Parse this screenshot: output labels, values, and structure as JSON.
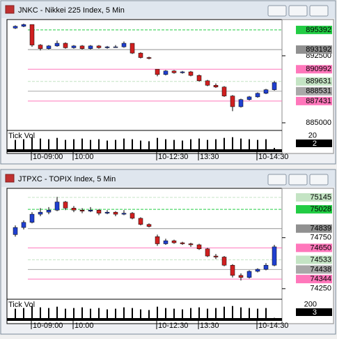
{
  "chart_data": [
    {
      "type": "candlestick",
      "title": "JNKC - Nikkei 225 Index, 5 Min",
      "volume_label": "Tick Vol",
      "up_color": "#2040d0",
      "down_color": "#d02020",
      "ylim": [
        884300,
        896400
      ],
      "yticks": [
        892500,
        885000
      ],
      "levels": [
        {
          "value": 895392,
          "color": "#22cc44"
        },
        {
          "value": 893192,
          "color": "#909090"
        },
        {
          "value": 890992,
          "color": "#ff77bb"
        },
        {
          "value": 889631,
          "color": "#c4e4c4"
        },
        {
          "value": 888531,
          "color": "#a8a8a8"
        },
        {
          "value": 887431,
          "color": "#ff77bb"
        }
      ],
      "xticks": [
        {
          "value": 4,
          "label": "10-09:00"
        },
        {
          "value": 9,
          "label": "10:00"
        },
        {
          "value": 19,
          "label": "10-12:30"
        },
        {
          "value": 24,
          "label": "13:30"
        },
        {
          "value": 31,
          "label": "10-14:30"
        }
      ],
      "candles": [
        [
          895600,
          895900,
          895500,
          895800
        ],
        [
          895800,
          896100,
          895700,
          896000
        ],
        [
          896000,
          896000,
          893500,
          893700
        ],
        [
          893700,
          893800,
          893100,
          893300
        ],
        [
          893300,
          893700,
          893200,
          893600
        ],
        [
          893600,
          894200,
          893500,
          893900
        ],
        [
          893900,
          894000,
          893300,
          893400
        ],
        [
          893400,
          893700,
          893300,
          893600
        ],
        [
          893600,
          893700,
          893200,
          893300
        ],
        [
          893300,
          893700,
          893200,
          893600
        ],
        [
          893600,
          893700,
          893300,
          893400
        ],
        [
          893400,
          893600,
          893300,
          893500
        ],
        [
          893500,
          893700,
          893400,
          893500
        ],
        [
          893500,
          894100,
          893400,
          893900
        ],
        [
          893900,
          893900,
          892700,
          892800
        ],
        [
          892800,
          892900,
          892200,
          892300
        ],
        [
          892300,
          892400,
          892100,
          892200
        ],
        [
          891000,
          891000,
          890200,
          890400
        ],
        [
          890400,
          890900,
          890300,
          890800
        ],
        [
          890800,
          890900,
          890500,
          890600
        ],
        [
          890600,
          890800,
          890500,
          890700
        ],
        [
          890700,
          890800,
          890200,
          890300
        ],
        [
          890300,
          890400,
          889600,
          889700
        ],
        [
          889700,
          889800,
          889100,
          889200
        ],
        [
          889200,
          889400,
          888900,
          889000
        ],
        [
          889000,
          889100,
          887900,
          888000
        ],
        [
          888000,
          888100,
          886300,
          886800
        ],
        [
          886800,
          887700,
          886700,
          887600
        ],
        [
          887600,
          888000,
          887500,
          887900
        ],
        [
          887900,
          888400,
          887800,
          888300
        ],
        [
          888300,
          888800,
          888200,
          888700
        ],
        [
          888700,
          889700,
          888600,
          889500
        ]
      ],
      "volume": [
        14,
        15,
        18,
        16,
        15,
        17,
        14,
        15,
        16,
        14,
        15,
        13,
        14,
        16,
        15,
        13,
        12,
        17,
        15,
        14,
        13,
        15,
        16,
        14,
        15,
        17,
        18,
        16,
        15,
        14,
        15,
        2
      ],
      "vlim": [
        0,
        25
      ],
      "vticks": [
        20
      ]
    },
    {
      "type": "candlestick",
      "title": "JTPXC - TOPIX Index, 5 Min",
      "volume_label": "Tick Vol",
      "up_color": "#2040d0",
      "down_color": "#d02020",
      "ylim": [
        74160,
        75220
      ],
      "yticks": [
        74750,
        74250
      ],
      "levels": [
        {
          "value": 75145,
          "color": "#c4e4c4"
        },
        {
          "value": 75028,
          "color": "#22cc44"
        },
        {
          "value": 74839,
          "color": "#909090"
        },
        {
          "value": 74650,
          "color": "#ff77bb"
        },
        {
          "value": 74533,
          "color": "#c4e4c4"
        },
        {
          "value": 74438,
          "color": "#a8a8a8"
        },
        {
          "value": 74344,
          "color": "#ff77bb"
        }
      ],
      "xticks": [
        {
          "value": 4,
          "label": "10-09:00"
        },
        {
          "value": 9,
          "label": "10:00"
        },
        {
          "value": 19,
          "label": "10-12:30"
        },
        {
          "value": 24,
          "label": "13:30"
        },
        {
          "value": 31,
          "label": "10-14:30"
        }
      ],
      "candles": [
        [
          74780,
          74870,
          74760,
          74850
        ],
        [
          74850,
          74920,
          74830,
          74900
        ],
        [
          74900,
          75000,
          74890,
          74980
        ],
        [
          74980,
          75040,
          74960,
          75000
        ],
        [
          75000,
          75050,
          74980,
          75020
        ],
        [
          75020,
          75150,
          75010,
          75100
        ],
        [
          75100,
          75110,
          75020,
          75040
        ],
        [
          75040,
          75060,
          75000,
          75020
        ],
        [
          75020,
          75040,
          74990,
          75010
        ],
        [
          75010,
          75050,
          75000,
          75020
        ],
        [
          75020,
          75030,
          74970,
          74990
        ],
        [
          74990,
          75020,
          74980,
          75000
        ],
        [
          75000,
          75010,
          74960,
          74980
        ],
        [
          74980,
          75020,
          74970,
          74990
        ],
        [
          74990,
          75000,
          74930,
          74940
        ],
        [
          74940,
          74950,
          74870,
          74880
        ],
        [
          74880,
          74890,
          74850,
          74860
        ],
        [
          74760,
          74780,
          74670,
          74690
        ],
        [
          74690,
          74740,
          74680,
          74720
        ],
        [
          74720,
          74730,
          74690,
          74700
        ],
        [
          74700,
          74710,
          74680,
          74690
        ],
        [
          74690,
          74700,
          74660,
          74680
        ],
        [
          74680,
          74690,
          74630,
          74640
        ],
        [
          74640,
          74650,
          74560,
          74570
        ],
        [
          74570,
          74590,
          74540,
          74560
        ],
        [
          74560,
          74570,
          74470,
          74480
        ],
        [
          74480,
          74490,
          74360,
          74380
        ],
        [
          74380,
          74400,
          74330,
          74360
        ],
        [
          74360,
          74430,
          74350,
          74420
        ],
        [
          74420,
          74450,
          74410,
          74440
        ],
        [
          74440,
          74500,
          74430,
          74480
        ],
        [
          74480,
          74680,
          74470,
          74660
        ]
      ],
      "volume": [
        140,
        150,
        180,
        160,
        150,
        170,
        140,
        150,
        160,
        140,
        150,
        130,
        140,
        160,
        150,
        130,
        120,
        170,
        150,
        140,
        130,
        150,
        160,
        140,
        150,
        170,
        180,
        160,
        150,
        140,
        150,
        3
      ],
      "vlim": [
        0,
        250
      ],
      "vticks": [
        200
      ]
    }
  ]
}
